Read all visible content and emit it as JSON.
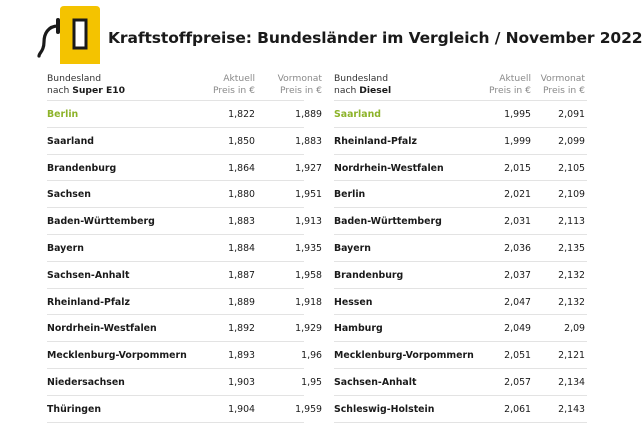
{
  "title": "Kraftstoffpreise: Bundesländer im Vergleich / November 2022",
  "colors": {
    "accent_yellow": "#f4c300",
    "highlight_green": "#8db32a"
  },
  "icon": "fuel-pump-icon",
  "left_table": {
    "header_name_line1": "Bundesland",
    "header_name_prefix": "nach",
    "header_name_fuel": "Super E10",
    "header_current_line1": "Aktuell",
    "header_current_line2": "Preis in €",
    "header_previous_line1": "Vormonat",
    "header_previous_line2": "Preis in €",
    "rows": [
      {
        "name": "Berlin",
        "current": "1,822",
        "previous": "1,889"
      },
      {
        "name": "Saarland",
        "current": "1,850",
        "previous": "1,883"
      },
      {
        "name": "Brandenburg",
        "current": "1,864",
        "previous": "1,927"
      },
      {
        "name": "Sachsen",
        "current": "1,880",
        "previous": "1,951"
      },
      {
        "name": "Baden-Württemberg",
        "current": "1,883",
        "previous": "1,913"
      },
      {
        "name": "Bayern",
        "current": "1,884",
        "previous": "1,935"
      },
      {
        "name": "Sachsen-Anhalt",
        "current": "1,887",
        "previous": "1,958"
      },
      {
        "name": "Rheinland-Pfalz",
        "current": "1,889",
        "previous": "1,918"
      },
      {
        "name": "Nordrhein-Westfalen",
        "current": "1,892",
        "previous": "1,929"
      },
      {
        "name": "Mecklenburg-Vorpommern",
        "current": "1,893",
        "previous": "1,96"
      },
      {
        "name": "Niedersachsen",
        "current": "1,903",
        "previous": "1,95"
      },
      {
        "name": "Thüringen",
        "current": "1,904",
        "previous": "1,959"
      }
    ]
  },
  "right_table": {
    "header_name_line1": "Bundesland",
    "header_name_prefix": "nach",
    "header_name_fuel": "Diesel",
    "header_current_line1": "Aktuell",
    "header_current_line2": "Preis in €",
    "header_previous_line1": "Vormonat",
    "header_previous_line2": "Preis in €",
    "rows": [
      {
        "name": "Saarland",
        "current": "1,995",
        "previous": "2,091"
      },
      {
        "name": "Rheinland-Pfalz",
        "current": "1,999",
        "previous": "2,099"
      },
      {
        "name": "Nordrhein-Westfalen",
        "current": "2,015",
        "previous": "2,105"
      },
      {
        "name": "Berlin",
        "current": "2,021",
        "previous": "2,109"
      },
      {
        "name": "Baden-Württemberg",
        "current": "2,031",
        "previous": "2,113"
      },
      {
        "name": "Bayern",
        "current": "2,036",
        "previous": "2,135"
      },
      {
        "name": "Brandenburg",
        "current": "2,037",
        "previous": "2,132"
      },
      {
        "name": "Hessen",
        "current": "2,047",
        "previous": "2,132"
      },
      {
        "name": "Hamburg",
        "current": "2,049",
        "previous": "2,09"
      },
      {
        "name": "Mecklenburg-Vorpommern",
        "current": "2,051",
        "previous": "2,121"
      },
      {
        "name": "Sachsen-Anhalt",
        "current": "2,057",
        "previous": "2,134"
      },
      {
        "name": "Schleswig-Holstein",
        "current": "2,061",
        "previous": "2,143"
      }
    ]
  }
}
